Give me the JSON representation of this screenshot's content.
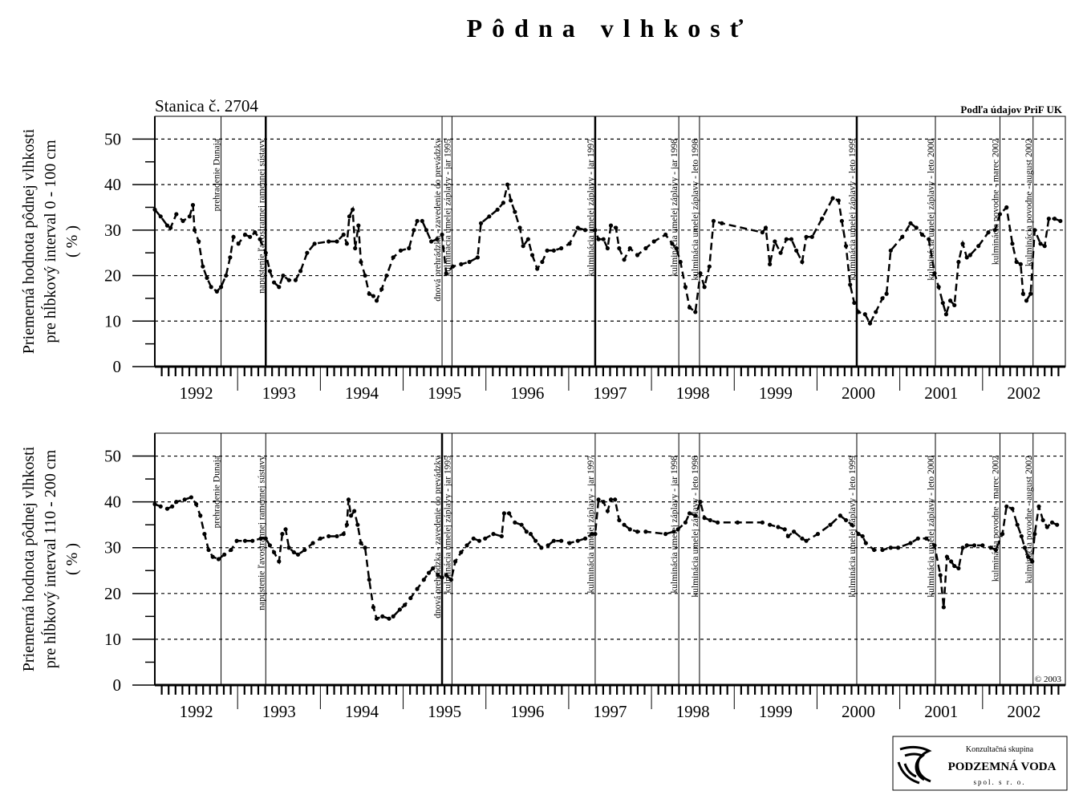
{
  "title": "Pôdna vlhkosť",
  "station": "Stanica č. 2704",
  "source": "Podľa údajov PriF UK",
  "copyright": "© 2003",
  "logo": {
    "line1": "Konzultačná skupina",
    "line2": "PODZEMNÁ VODA",
    "line3": "spol. s r. o."
  },
  "chart_data": [
    {
      "type": "line",
      "ylabel": [
        "Priemerná hodnota pôdnej vlhkosti",
        "pre hĺbkový interval 0 - 100 cm",
        "( % )"
      ],
      "xlim": [
        1992,
        2003
      ],
      "ylim": [
        0,
        55
      ],
      "yticks": [
        0,
        10,
        20,
        30,
        40,
        50
      ],
      "grid": true,
      "color": "#000000",
      "xticks": [
        {
          "value": 1992.5,
          "label": "1992"
        },
        {
          "value": 1993.5,
          "label": "1993"
        },
        {
          "value": 1994.5,
          "label": "1994"
        },
        {
          "value": 1995.5,
          "label": "1995"
        },
        {
          "value": 1996.5,
          "label": "1996"
        },
        {
          "value": 1997.5,
          "label": "1997"
        },
        {
          "value": 1998.5,
          "label": "1998"
        },
        {
          "value": 1999.5,
          "label": "1999"
        },
        {
          "value": 2000.5,
          "label": "2000"
        },
        {
          "value": 2001.5,
          "label": "2001"
        },
        {
          "value": 2002.5,
          "label": "2002"
        }
      ],
      "events": [
        {
          "x": 1992.8,
          "label": "prehradenie Dunaja",
          "thick": false
        },
        {
          "x": 1993.34,
          "label": "napustenie ľavostrannej ramennej sústavy",
          "thick": true
        },
        {
          "x": 1995.47,
          "label": "dnová prehrádzka - zavedenie do prevádzky",
          "thick": false
        },
        {
          "x": 1995.59,
          "label": "kulminácia umelej záplavy - jar 1995",
          "thick": false
        },
        {
          "x": 1997.32,
          "label": "kulminácia umelej záplavy - jar 1997",
          "thick": true
        },
        {
          "x": 1998.33,
          "label": "kulminácia umelej záplavy - jar 1998",
          "thick": false
        },
        {
          "x": 1998.58,
          "label": "kulminácia umelej záplavy - leto 1998",
          "thick": false
        },
        {
          "x": 2000.48,
          "label": "kulminácia umelej záplavy - leto 1999",
          "thick": true
        },
        {
          "x": 2001.43,
          "label": "kulminácia umelej záplavy - leto 2000",
          "thick": false
        },
        {
          "x": 2002.21,
          "label": "kulminácia povodne - marec 2002",
          "thick": false
        },
        {
          "x": 2002.61,
          "label": "kulminácia povodne - august 2002",
          "thick": false
        }
      ],
      "x": [
        1992.0,
        1992.07,
        1992.15,
        1992.19,
        1992.26,
        1992.34,
        1992.42,
        1992.46,
        1992.48,
        1992.53,
        1992.58,
        1992.63,
        1992.68,
        1992.75,
        1992.8,
        1992.86,
        1992.91,
        1992.95,
        1993.01,
        1993.09,
        1993.15,
        1993.21,
        1993.27,
        1993.34,
        1993.39,
        1993.44,
        1993.5,
        1993.55,
        1993.62,
        1993.7,
        1993.76,
        1993.84,
        1993.93,
        1994.1,
        1994.2,
        1994.28,
        1994.32,
        1994.35,
        1994.39,
        1994.42,
        1994.46,
        1994.49,
        1994.54,
        1994.59,
        1994.64,
        1994.68,
        1994.74,
        1994.8,
        1994.88,
        1994.97,
        1995.07,
        1995.13,
        1995.17,
        1995.23,
        1995.28,
        1995.34,
        1995.41,
        1995.47,
        1995.52,
        1995.6,
        1995.7,
        1995.8,
        1995.9,
        1995.94,
        1996.04,
        1996.14,
        1996.21,
        1996.26,
        1996.3,
        1996.35,
        1996.41,
        1996.45,
        1996.51,
        1996.56,
        1996.62,
        1996.68,
        1996.74,
        1996.82,
        1996.91,
        1997.01,
        1997.11,
        1997.2,
        1997.32,
        1997.36,
        1997.42,
        1997.47,
        1997.51,
        1997.57,
        1997.61,
        1997.67,
        1997.74,
        1997.83,
        1997.93,
        1998.03,
        1998.17,
        1998.25,
        1998.3,
        1998.35,
        1998.41,
        1998.46,
        1998.53,
        1998.59,
        1998.64,
        1998.7,
        1998.75,
        1998.85,
        1999.34,
        1999.38,
        1999.43,
        1999.49,
        1999.56,
        1999.63,
        1999.69,
        1999.75,
        1999.82,
        1999.87,
        1999.94,
        2000.06,
        2000.19,
        2000.26,
        2000.3,
        2000.35,
        2000.4,
        2000.45,
        2000.5,
        2000.58,
        2000.64,
        2000.71,
        2000.79,
        2000.84,
        2000.89,
        2001.03,
        2001.13,
        2001.2,
        2001.27,
        2001.35,
        2001.42,
        2001.47,
        2001.52,
        2001.56,
        2001.61,
        2001.66,
        2001.71,
        2001.76,
        2001.81,
        2001.85,
        2001.95,
        2002.07,
        2002.15,
        2002.21,
        2002.29,
        2002.36,
        2002.41,
        2002.46,
        2002.49,
        2002.53,
        2002.58,
        2002.63,
        2002.7,
        2002.75,
        2002.8,
        2002.87,
        2002.94
      ],
      "values": [
        34.5,
        33,
        31,
        30.5,
        33.5,
        32,
        33,
        35.5,
        30,
        27.5,
        22,
        19.5,
        17.5,
        16.5,
        17.5,
        20,
        24,
        28.5,
        27,
        29,
        28.5,
        29.5,
        28,
        25,
        21,
        18.5,
        17.5,
        20,
        19,
        19,
        21,
        25,
        27,
        27.5,
        27.5,
        29,
        27,
        33,
        34.5,
        26,
        31,
        23,
        20,
        16,
        15.5,
        14.5,
        17,
        20,
        24,
        25.5,
        26,
        30,
        32,
        32,
        30,
        27.5,
        28,
        29,
        20.5,
        22,
        22.5,
        23,
        24,
        31.5,
        33,
        34.5,
        36,
        40,
        36.5,
        34,
        30.5,
        26.5,
        28,
        24.5,
        21.5,
        23,
        25.5,
        25.5,
        26,
        27,
        30.5,
        30,
        30,
        28,
        28,
        26,
        31,
        30.5,
        26,
        23.5,
        26,
        24.5,
        26,
        27.5,
        29,
        27,
        26,
        23,
        17.5,
        13,
        12,
        20.5,
        17.5,
        22,
        32,
        31.5,
        29.5,
        30.5,
        22.5,
        27.5,
        25,
        28,
        28,
        25.5,
        23,
        28.5,
        28.5,
        32.5,
        37,
        36.5,
        32,
        26.5,
        18,
        14,
        12,
        11.5,
        9.5,
        12,
        15,
        16,
        25.5,
        28.5,
        31.5,
        30.5,
        29,
        28,
        20.5,
        17.5,
        14,
        11.5,
        14.5,
        13.5,
        23,
        27,
        24,
        24.5,
        26.5,
        29.5,
        30,
        33.5,
        35,
        27,
        23,
        22.5,
        16,
        14.5,
        16,
        30,
        27,
        26.5,
        32.5,
        32.5,
        32
      ]
    },
    {
      "type": "line",
      "ylabel": [
        "Priemerná hodnota pôdnej vlhkosti",
        "pre hĺbkový interval 110 - 200 cm",
        "( % )"
      ],
      "xlim": [
        1992,
        2003
      ],
      "ylim": [
        0,
        55
      ],
      "yticks": [
        0,
        10,
        20,
        30,
        40,
        50
      ],
      "grid": true,
      "color": "#000000",
      "xticks": [
        {
          "value": 1992.5,
          "label": "1992"
        },
        {
          "value": 1993.5,
          "label": "1993"
        },
        {
          "value": 1994.5,
          "label": "1994"
        },
        {
          "value": 1995.5,
          "label": "1995"
        },
        {
          "value": 1996.5,
          "label": "1996"
        },
        {
          "value": 1997.5,
          "label": "1997"
        },
        {
          "value": 1998.5,
          "label": "1998"
        },
        {
          "value": 1999.5,
          "label": "1999"
        },
        {
          "value": 2000.5,
          "label": "2000"
        },
        {
          "value": 2001.5,
          "label": "2001"
        },
        {
          "value": 2002.5,
          "label": "2002"
        }
      ],
      "events": [
        {
          "x": 1992.8,
          "label": "prehradenie Dunaja",
          "thick": false
        },
        {
          "x": 1993.34,
          "label": "napustenie ľavostrannej ramennej sústavy",
          "thick": false
        },
        {
          "x": 1995.47,
          "label": "dnová prehrádzka - zavedenie do prevádzky",
          "thick": true
        },
        {
          "x": 1995.59,
          "label": "kulminácia umelej záplavy - jar 1995",
          "thick": false
        },
        {
          "x": 1997.32,
          "label": "kulminácia umelej záplavy - jar 1997",
          "thick": false
        },
        {
          "x": 1998.33,
          "label": "kulminácia umelej záplavy - jar 1998",
          "thick": false
        },
        {
          "x": 1998.58,
          "label": "kulminácia umelej záplavy - leto 1998",
          "thick": false
        },
        {
          "x": 2000.48,
          "label": "kulminácia umelej záplavy - leto 1999",
          "thick": false
        },
        {
          "x": 2001.43,
          "label": "kulminácia umelej záplavy - leto 2000",
          "thick": false
        },
        {
          "x": 2002.21,
          "label": "kulminácia povodne - marec 2002",
          "thick": false
        },
        {
          "x": 2002.61,
          "label": "kulminácia povodne - august 2002",
          "thick": false
        }
      ],
      "x": [
        1992.0,
        1992.07,
        1992.15,
        1992.21,
        1992.26,
        1992.36,
        1992.44,
        1992.5,
        1992.55,
        1992.6,
        1992.65,
        1992.7,
        1992.77,
        1992.84,
        1992.92,
        1992.99,
        1993.09,
        1993.18,
        1993.28,
        1993.34,
        1993.39,
        1993.44,
        1993.5,
        1993.54,
        1993.58,
        1993.62,
        1993.68,
        1993.73,
        1993.81,
        1993.91,
        1994.0,
        1994.1,
        1994.2,
        1994.28,
        1994.32,
        1994.34,
        1994.37,
        1994.41,
        1994.45,
        1994.49,
        1994.54,
        1994.59,
        1994.64,
        1994.68,
        1994.75,
        1994.83,
        1994.88,
        1994.96,
        1995.02,
        1995.09,
        1995.17,
        1995.25,
        1995.31,
        1995.36,
        1995.42,
        1995.47,
        1995.52,
        1995.58,
        1995.63,
        1995.7,
        1995.77,
        1995.85,
        1995.92,
        1995.99,
        1996.09,
        1996.19,
        1996.22,
        1996.28,
        1996.35,
        1996.43,
        1996.49,
        1996.54,
        1996.6,
        1996.67,
        1996.75,
        1996.82,
        1996.91,
        1997.01,
        1997.11,
        1997.2,
        1997.28,
        1997.32,
        1997.36,
        1997.42,
        1997.47,
        1997.51,
        1997.56,
        1997.61,
        1997.67,
        1997.74,
        1997.83,
        1997.93,
        1998.17,
        1998.27,
        1998.32,
        1998.41,
        1998.46,
        1998.53,
        1998.59,
        1998.64,
        1998.71,
        1998.8,
        1999.04,
        1999.34,
        1999.43,
        1999.53,
        1999.61,
        1999.65,
        1999.72,
        1999.82,
        1999.87,
        2000.01,
        2000.16,
        2000.28,
        2000.35,
        2000.42,
        2000.5,
        2000.55,
        2000.59,
        2000.69,
        2000.79,
        2000.89,
        2000.98,
        2001.13,
        2001.22,
        2001.32,
        2001.42,
        2001.49,
        2001.53,
        2001.57,
        2001.62,
        2001.66,
        2001.71,
        2001.76,
        2001.81,
        2001.9,
        2002.0,
        2002.1,
        2002.16,
        2002.24,
        2002.29,
        2002.36,
        2002.42,
        2002.47,
        2002.51,
        2002.55,
        2002.6,
        2002.63,
        2002.68,
        2002.73,
        2002.78,
        2002.84,
        2002.9
      ],
      "values": [
        39.5,
        39,
        38.5,
        39,
        40,
        40.5,
        41,
        39.5,
        37,
        33,
        29.5,
        28,
        27.5,
        28.5,
        29.5,
        31.5,
        31.5,
        31.5,
        32,
        32,
        30.5,
        29,
        27,
        33,
        34,
        30,
        29,
        28.5,
        29.5,
        31,
        32,
        32.5,
        32.5,
        33,
        35,
        40.5,
        37,
        38,
        35,
        31,
        30,
        23,
        17,
        14.5,
        15,
        14.5,
        15,
        16.5,
        17.5,
        19,
        21,
        23,
        24.5,
        25.5,
        24,
        23.5,
        24,
        23,
        27,
        29,
        30.5,
        32,
        31.5,
        32,
        33,
        32.5,
        37.5,
        37.5,
        35.5,
        35,
        33.5,
        33,
        31.5,
        30,
        30.5,
        31.5,
        31.5,
        31,
        31.5,
        32,
        33,
        33,
        40.5,
        40,
        38,
        40.5,
        40.5,
        36,
        35,
        34,
        33.5,
        33.5,
        33,
        33.5,
        34,
        35.5,
        37.5,
        37,
        40,
        36.5,
        36,
        35.5,
        35.5,
        35.5,
        35,
        34.5,
        34,
        32.5,
        33.5,
        32,
        31.5,
        33,
        35,
        37,
        36,
        35,
        33,
        32.5,
        31,
        29.5,
        29.5,
        30,
        30,
        31,
        32,
        32,
        30.5,
        24,
        17,
        28,
        27,
        26,
        25.5,
        30,
        30.5,
        30.5,
        30.5,
        30,
        29.5,
        33,
        39,
        38.5,
        35,
        32.5,
        30,
        28,
        27,
        33,
        39,
        36,
        34.5,
        35.5,
        35
      ]
    }
  ]
}
